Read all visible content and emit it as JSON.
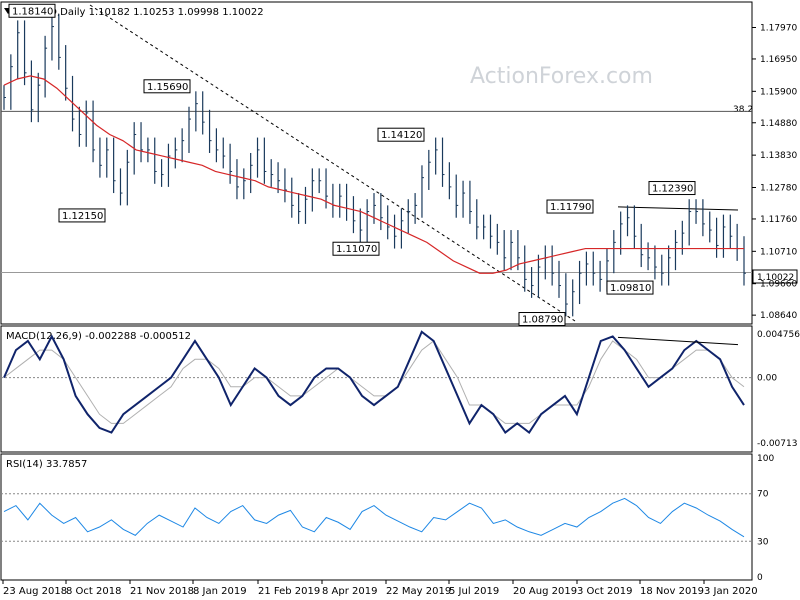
{
  "chart_data": [
    {
      "type": "line",
      "panel": "price",
      "header": "EURUSD,Daily  1.10182 1.10253 1.09998 1.10022",
      "watermark": "ActionForex.com",
      "ylim": [
        1.0845,
        1.187
      ],
      "y_ticks": [
        "1.17970",
        "1.16950",
        "1.15900",
        "1.14880",
        "1.13830",
        "1.12780",
        "1.11760",
        "1.10710",
        "1.09660",
        "1.08640"
      ],
      "y_tick_values": [
        1.1797,
        1.1695,
        1.159,
        1.1488,
        1.1383,
        1.1278,
        1.1176,
        1.1071,
        1.0966,
        1.0864
      ],
      "current_price": "1.10022",
      "fib_label": "38.2",
      "fib_level": 1.1525,
      "close_series": [
        1.157,
        1.167,
        1.178,
        1.165,
        1.153,
        1.161,
        1.173,
        1.18,
        1.17,
        1.16,
        1.15,
        1.145,
        1.152,
        1.14,
        1.135,
        1.14,
        1.13,
        1.126,
        1.136,
        1.145,
        1.14,
        1.14,
        1.133,
        1.132,
        1.138,
        1.14,
        1.143,
        1.15,
        1.155,
        1.149,
        1.143,
        1.14,
        1.138,
        1.133,
        1.128,
        1.13,
        1.135,
        1.14,
        1.133,
        1.132,
        1.13,
        1.127,
        1.122,
        1.12,
        1.124,
        1.13,
        1.13,
        1.125,
        1.122,
        1.125,
        1.121,
        1.117,
        1.114,
        1.12,
        1.122,
        1.118,
        1.115,
        1.112,
        1.117,
        1.12,
        1.122,
        1.131,
        1.136,
        1.14,
        1.132,
        1.128,
        1.122,
        1.126,
        1.12,
        1.115,
        1.115,
        1.112,
        1.11,
        1.105,
        1.11,
        1.105,
        1.098,
        1.096,
        1.102,
        1.105,
        1.1,
        1.096,
        1.09,
        1.094,
        1.1,
        1.103,
        1.1,
        1.098,
        1.104,
        1.11,
        1.116,
        1.118,
        1.112,
        1.106,
        1.105,
        1.102,
        1.1,
        1.105,
        1.11,
        1.113,
        1.12,
        1.12,
        1.116,
        1.114,
        1.109,
        1.115,
        1.112,
        1.108,
        1.1
      ],
      "ma_series": [
        1.161,
        1.163,
        1.164,
        1.163,
        1.16,
        1.156,
        1.152,
        1.148,
        1.145,
        1.143,
        1.14,
        1.139,
        1.138,
        1.137,
        1.136,
        1.135,
        1.133,
        1.132,
        1.131,
        1.13,
        1.128,
        1.127,
        1.126,
        1.125,
        1.124,
        1.122,
        1.121,
        1.12,
        1.118,
        1.116,
        1.114,
        1.112,
        1.11,
        1.107,
        1.104,
        1.102,
        1.1,
        1.1,
        1.101,
        1.103,
        1.104,
        1.105,
        1.106,
        1.107,
        1.108,
        1.108,
        1.108,
        1.108,
        1.108,
        1.108,
        1.108,
        1.108,
        1.108,
        1.108,
        1.108,
        1.108,
        1.108
      ],
      "annotations": [
        {
          "label": "1.18140",
          "value": 1.1814
        },
        {
          "label": "1.15690",
          "value": 1.1569
        },
        {
          "label": "1.12150",
          "value": 1.1215
        },
        {
          "label": "1.11070",
          "value": 1.1107
        },
        {
          "label": "1.14120",
          "value": 1.1412
        },
        {
          "label": "1.11790",
          "value": 1.1179
        },
        {
          "label": "1.08790",
          "value": 1.0879
        },
        {
          "label": "1.09810",
          "value": 1.0981
        },
        {
          "label": "1.12390",
          "value": 1.1239
        }
      ],
      "x_tick_labels": [
        "23 Aug 2018",
        "8 Oct 2018",
        "21 Nov 2018",
        "8 Jan 2019",
        "21 Feb 2019",
        "8 Apr 2019",
        "22 May 2019",
        "5 Jul 2019",
        "20 Aug 2019",
        "3 Oct 2019",
        "18 Nov 2019",
        "3 Jan 2020"
      ]
    },
    {
      "type": "line",
      "panel": "macd",
      "header": "MACD(12,26,9) -0.002288 -0.000512",
      "ylim": [
        -0.0078,
        0.0052
      ],
      "y_ticks": [
        "0.004756",
        "0.00",
        "-0.00713"
      ],
      "y_tick_values": [
        0.004756,
        0.0,
        -0.00713
      ],
      "macd_series": [
        0.0,
        0.003,
        0.004,
        0.002,
        0.0045,
        0.002,
        -0.002,
        -0.004,
        -0.0055,
        -0.006,
        -0.004,
        -0.003,
        -0.002,
        -0.001,
        0.0,
        0.002,
        0.004,
        0.002,
        0.0,
        -0.003,
        -0.001,
        0.001,
        0.0,
        -0.002,
        -0.003,
        -0.002,
        0.0,
        0.001,
        0.001,
        0.0,
        -0.002,
        -0.003,
        -0.002,
        -0.001,
        0.002,
        0.005,
        0.004,
        0.001,
        -0.002,
        -0.005,
        -0.003,
        -0.004,
        -0.006,
        -0.005,
        -0.006,
        -0.004,
        -0.003,
        -0.002,
        -0.004,
        0.0,
        0.004,
        0.0045,
        0.003,
        0.001,
        -0.001,
        0.0,
        0.001,
        0.003,
        0.004,
        0.003,
        0.002,
        -0.001,
        -0.003
      ],
      "signal_series": [
        0.0,
        0.001,
        0.002,
        0.003,
        0.003,
        0.002,
        0.0,
        -0.002,
        -0.004,
        -0.005,
        -0.005,
        -0.004,
        -0.003,
        -0.002,
        -0.001,
        0.001,
        0.002,
        0.002,
        0.001,
        -0.001,
        -0.001,
        0.0,
        0.0,
        -0.001,
        -0.002,
        -0.002,
        -0.001,
        0.0,
        0.001,
        0.0,
        -0.001,
        -0.002,
        -0.002,
        -0.001,
        0.001,
        0.003,
        0.004,
        0.002,
        0.0,
        -0.003,
        -0.003,
        -0.004,
        -0.005,
        -0.005,
        -0.005,
        -0.004,
        -0.003,
        -0.003,
        -0.003,
        -0.001,
        0.002,
        0.004,
        0.003,
        0.002,
        0.0,
        0.0,
        0.001,
        0.002,
        0.003,
        0.003,
        0.002,
        0.0,
        -0.001
      ]
    },
    {
      "type": "line",
      "panel": "rsi",
      "header": "RSI(14) 33.7857",
      "ylim": [
        0,
        100
      ],
      "y_ticks": [
        "100",
        "70",
        "30",
        "0"
      ],
      "y_tick_values": [
        100,
        70,
        30,
        0
      ],
      "rsi_series": [
        55,
        60,
        48,
        62,
        52,
        45,
        50,
        38,
        42,
        48,
        40,
        35,
        45,
        52,
        47,
        42,
        58,
        50,
        45,
        55,
        60,
        48,
        45,
        52,
        56,
        42,
        38,
        50,
        46,
        40,
        55,
        60,
        52,
        47,
        42,
        38,
        50,
        48,
        55,
        62,
        58,
        45,
        48,
        42,
        38,
        35,
        40,
        45,
        42,
        50,
        55,
        62,
        66,
        60,
        50,
        45,
        55,
        62,
        58,
        52,
        47,
        40,
        33.8
      ]
    }
  ]
}
